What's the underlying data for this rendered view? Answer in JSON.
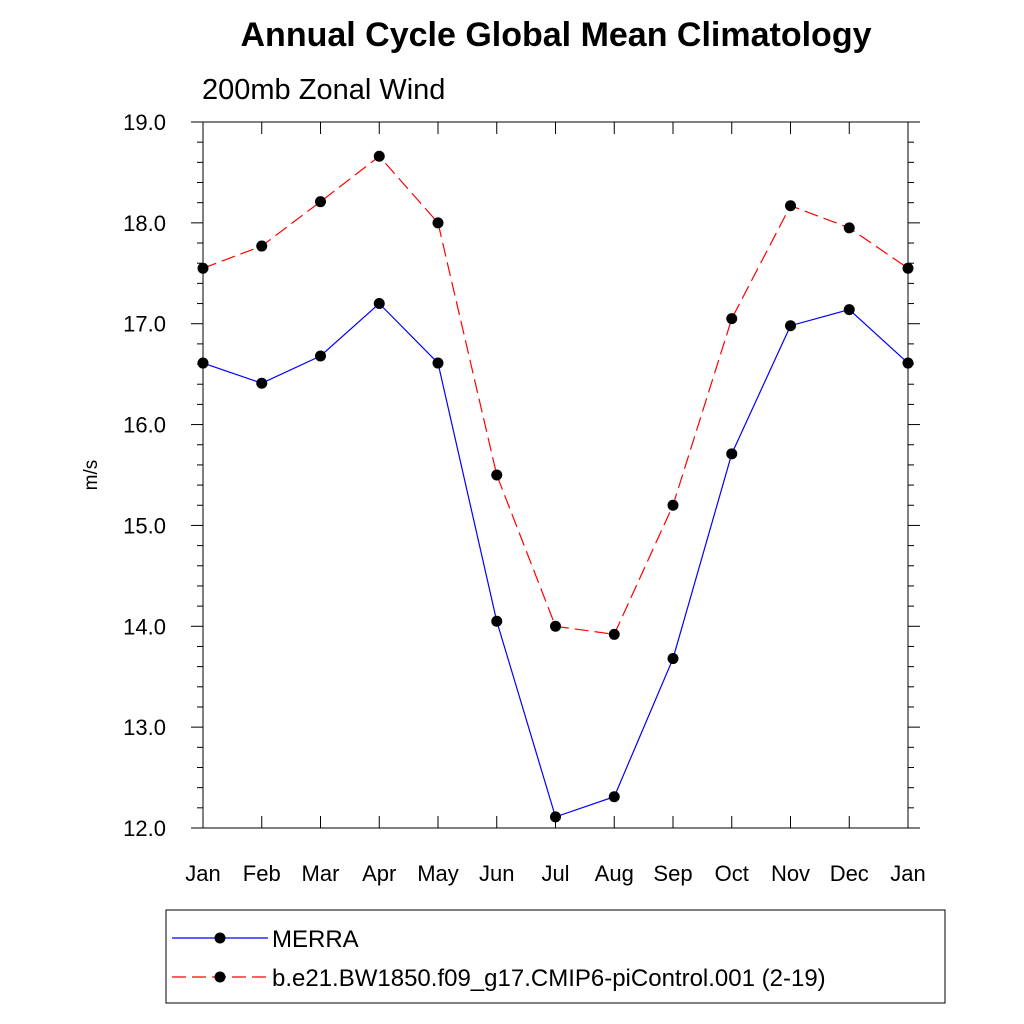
{
  "chart_data": {
    "type": "line",
    "title": "Annual Cycle Global Mean Climatology",
    "subtitle": "200mb Zonal Wind",
    "xlabel": "",
    "ylabel": "m/s",
    "categories": [
      "Jan",
      "Feb",
      "Mar",
      "Apr",
      "May",
      "Jun",
      "Jul",
      "Aug",
      "Sep",
      "Oct",
      "Nov",
      "Dec",
      "Jan"
    ],
    "ylim": [
      12.0,
      19.0
    ],
    "yticks": [
      "12.0",
      "13.0",
      "14.0",
      "15.0",
      "16.0",
      "17.0",
      "18.0",
      "19.0"
    ],
    "y_minor_step": 0.2,
    "grid": false,
    "legend_position": "bottom",
    "series": [
      {
        "name": "MERRA",
        "color": "#0000ff",
        "dash": "solid",
        "marker": "filled-circle",
        "values": [
          16.61,
          16.41,
          16.68,
          17.2,
          16.61,
          14.05,
          12.11,
          12.31,
          13.68,
          15.71,
          16.98,
          17.14,
          16.61
        ]
      },
      {
        "name": "b.e21.BW1850.f09_g17.CMIP6-piControl.001 (2-19)",
        "color": "#ff0000",
        "dash": "dashed",
        "marker": "filled-circle",
        "values": [
          17.55,
          17.77,
          18.21,
          18.66,
          18.0,
          15.5,
          14.0,
          13.92,
          15.2,
          17.05,
          18.17,
          17.95,
          17.55
        ]
      }
    ]
  }
}
